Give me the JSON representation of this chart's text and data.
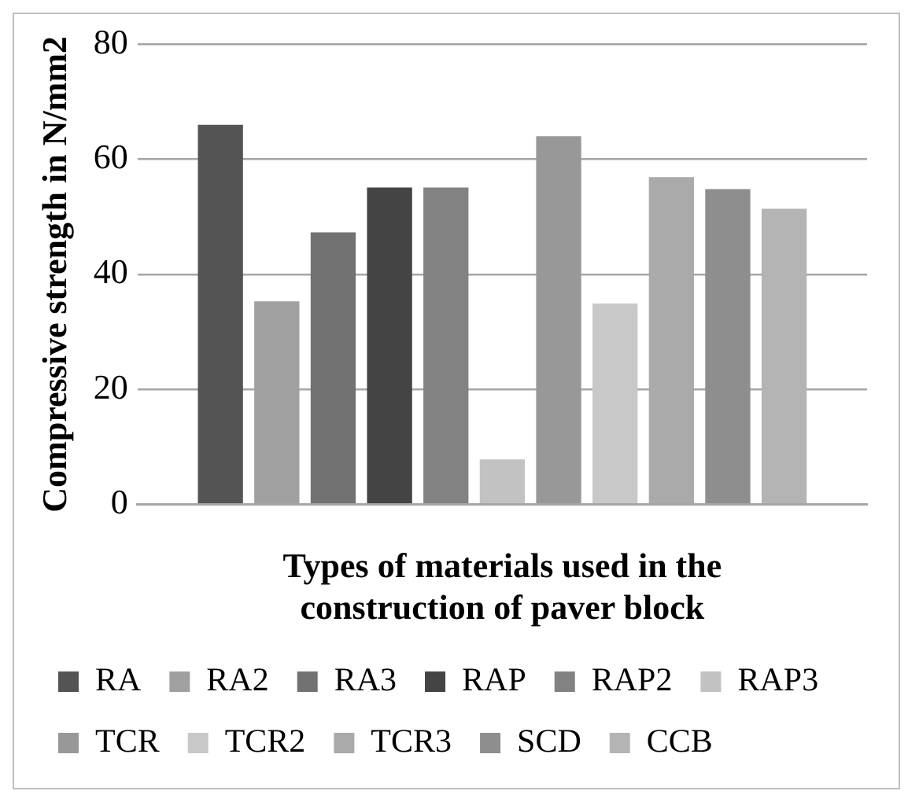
{
  "chart_data": {
    "type": "bar",
    "categories": [
      null
    ],
    "xlabel": "Types of materials used in the construction of paver block",
    "ylabel": "Compressive strength in N/mm2",
    "ylim": [
      0,
      80
    ],
    "yticks": [
      0,
      20,
      40,
      60,
      80
    ],
    "grid": "y",
    "legend": "bottom",
    "series": [
      {
        "name": "RA",
        "color": "#545454",
        "values": [
          66
        ]
      },
      {
        "name": "RA2",
        "color": "#a0a0a0",
        "values": [
          35.3
        ]
      },
      {
        "name": "RA3",
        "color": "#727272",
        "values": [
          47.3
        ]
      },
      {
        "name": "RAP",
        "color": "#444444",
        "values": [
          55.1
        ]
      },
      {
        "name": "RAP2",
        "color": "#828282",
        "values": [
          55.1
        ]
      },
      {
        "name": "RAP3",
        "color": "#c2c2c2",
        "values": [
          7.8
        ]
      },
      {
        "name": "TCR",
        "color": "#989898",
        "values": [
          64
        ]
      },
      {
        "name": "TCR2",
        "color": "#c8c8c8",
        "values": [
          34.9
        ]
      },
      {
        "name": "TCR3",
        "color": "#aaaaaa",
        "values": [
          56.9
        ]
      },
      {
        "name": "SCD",
        "color": "#8e8e8e",
        "values": [
          54.8
        ]
      },
      {
        "name": "CCB",
        "color": "#b4b4b4",
        "values": [
          51.4
        ]
      }
    ]
  }
}
